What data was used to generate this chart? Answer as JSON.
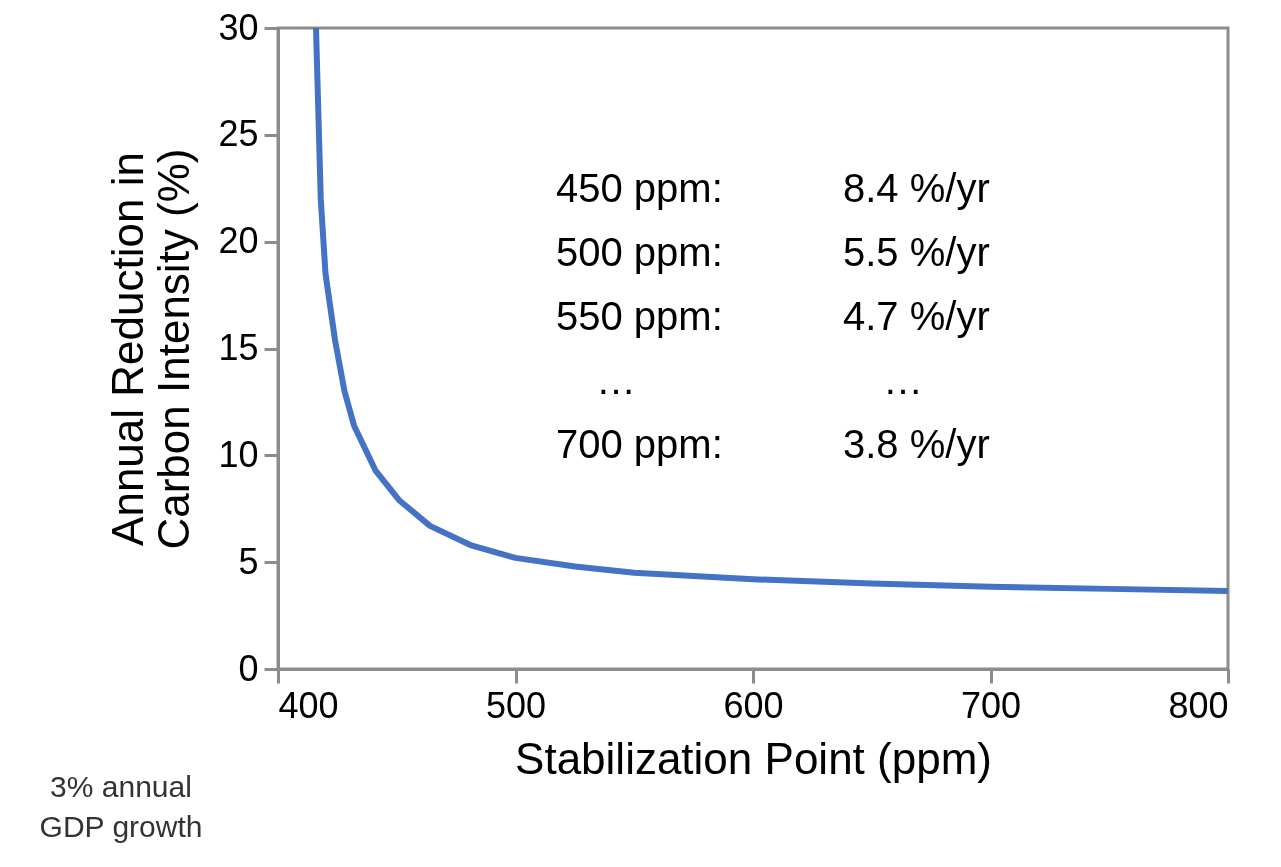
{
  "chart_data": {
    "type": "line",
    "xlabel": "Stabilization Point (ppm)",
    "ylabel": "Annual Reduction in\nCarbon Intensity (%)",
    "x": [
      416,
      418,
      420,
      424,
      428,
      432,
      441,
      451,
      464,
      481,
      500,
      525,
      550,
      600,
      650,
      700,
      750,
      800
    ],
    "series": [
      {
        "color": "#4472c4",
        "values": [
          30,
          22,
          18.5,
          15.4,
          13,
          11.4,
          9.3,
          7.9,
          6.7,
          5.8,
          5.2,
          4.8,
          4.5,
          4.2,
          4.0,
          3.85,
          3.75,
          3.65
        ]
      }
    ],
    "xlim": [
      400,
      800
    ],
    "xticks": [
      400,
      500,
      600,
      700,
      800
    ],
    "ylim": [
      0,
      30
    ],
    "yticks": [
      0,
      5,
      10,
      15,
      20,
      25,
      30
    ],
    "grid": false,
    "marker": "none",
    "line_style": "solid",
    "annotations": [
      "450 ppm:\t8.4 %/yr",
      "500 ppm:\t5.5 %/yr",
      "550 ppm:\t4.7 %/yr",
      "…\t…",
      "700 ppm:\t3.8 %/yr",
      "3% annual\nGDP growth"
    ]
  }
}
